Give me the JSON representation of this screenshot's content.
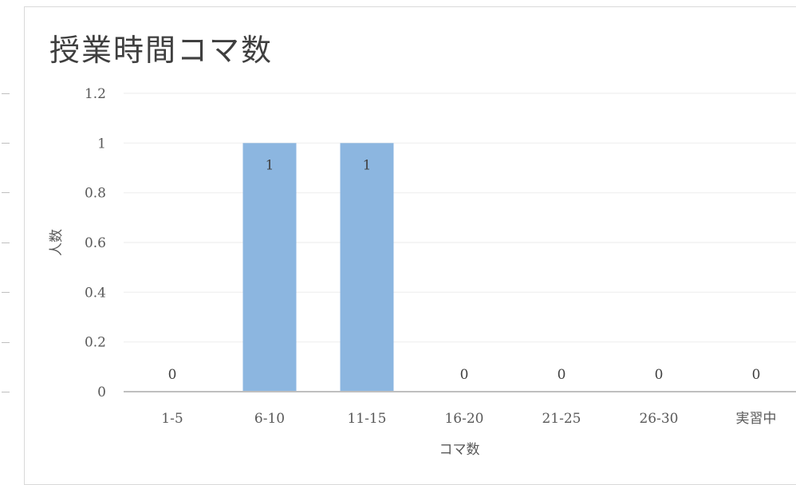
{
  "chart_data": {
    "type": "bar",
    "title": "授業時間コマ数",
    "xlabel": "コマ数",
    "ylabel": "人数",
    "categories": [
      "1-5",
      "6-10",
      "11-15",
      "16-20",
      "21-25",
      "26-30",
      "実習中"
    ],
    "values": [
      0,
      1,
      1,
      0,
      0,
      0,
      0
    ],
    "data_labels": [
      "0",
      "1",
      "1",
      "0",
      "0",
      "0",
      "0"
    ],
    "ylim": [
      0,
      1.2
    ],
    "yticks": [
      "0",
      "0.2",
      "0.4",
      "0.6",
      "0.8",
      "1",
      "1.2"
    ],
    "grid": true,
    "legend": "none",
    "colors": {
      "bar": "#8cb6e0",
      "grid": "#efefef",
      "axis": "#bfbfbf"
    }
  }
}
